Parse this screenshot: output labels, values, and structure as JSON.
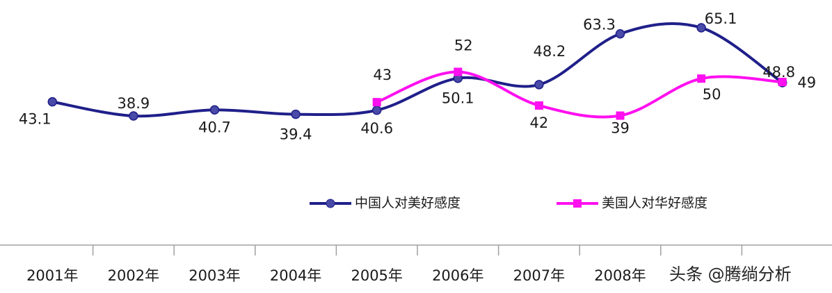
{
  "chart_data": {
    "type": "line",
    "categories": [
      "2001年",
      "2002年",
      "2003年",
      "2004年",
      "2005年",
      "2006年",
      "2007年",
      "2008年",
      null,
      null
    ],
    "series": [
      {
        "name": "中国人对美好感度",
        "color": "#1f1f8a",
        "marker": "circle",
        "values": [
          43.1,
          38.9,
          40.7,
          39.4,
          40.6,
          50.1,
          48.2,
          63.3,
          65.1,
          48.8
        ]
      },
      {
        "name": "美国人对华好感度",
        "color": "#ff10f0",
        "marker": "square",
        "values": [
          null,
          null,
          null,
          null,
          43,
          52,
          42,
          39,
          50,
          49
        ]
      }
    ],
    "watermark": "头条 @腾绱分析"
  }
}
